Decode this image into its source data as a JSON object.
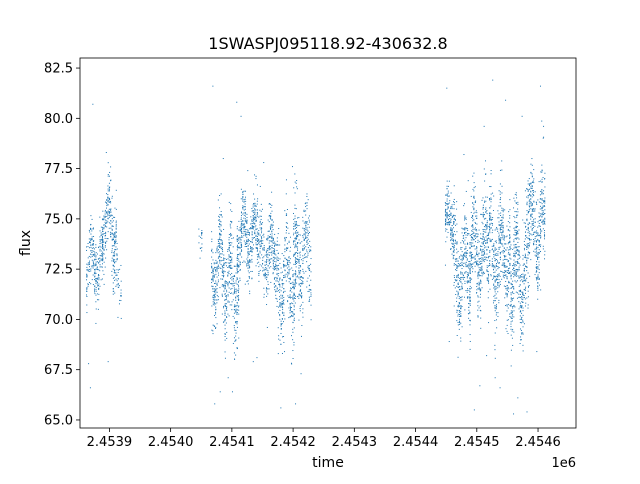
{
  "chart_data": {
    "type": "scatter",
    "title": "1SWASPJ095118.92-430632.8",
    "xlabel": "time",
    "ylabel": "flux",
    "x_offset_label": "1e6",
    "xlim": [
      2453852,
      2454662
    ],
    "ylim": [
      64.6,
      83.0
    ],
    "x_ticks": [
      2453900,
      2454000,
      2454100,
      2454200,
      2454300,
      2454400,
      2454500,
      2454600
    ],
    "x_tick_labels": [
      "2.4539",
      "2.4540",
      "2.4541",
      "2.4542",
      "2.4543",
      "2.4544",
      "2.4545",
      "2.4546"
    ],
    "y_ticks": [
      65.0,
      67.5,
      70.0,
      72.5,
      75.0,
      77.5,
      80.0,
      82.5
    ],
    "y_tick_labels": [
      "65.0",
      "67.5",
      "70.0",
      "72.5",
      "75.0",
      "77.5",
      "80.0",
      "82.5"
    ],
    "grid": false,
    "marker_color": "#1f77b4",
    "segments": [
      {
        "x_start": 2453862,
        "x_end": 2453890,
        "y_center": 72.9,
        "y_spread": 1.3,
        "n": 260,
        "seed": 11,
        "outliers": [
          [
            2453866,
            67.8
          ],
          [
            2453869,
            66.6
          ],
          [
            2453873,
            80.7
          ],
          [
            2453878,
            69.8
          ],
          [
            2453882,
            70.5
          ]
        ]
      },
      {
        "x_start": 2453888,
        "x_end": 2453912,
        "y_center": 74.7,
        "y_spread": 1.4,
        "n": 240,
        "seed": 23,
        "outliers": [
          [
            2453895,
            78.3
          ],
          [
            2453898,
            67.9
          ],
          [
            2453902,
            76.9
          ],
          [
            2453907,
            71.4
          ]
        ]
      },
      {
        "x_start": 2453905,
        "x_end": 2453920,
        "y_center": 72.0,
        "y_spread": 1.1,
        "n": 60,
        "seed": 31,
        "outliers": [
          [
            2453914,
            70.1
          ]
        ]
      },
      {
        "x_start": 2454045,
        "x_end": 2454052,
        "y_center": 74.3,
        "y_spread": 0.6,
        "n": 20,
        "seed": 41,
        "outliers": []
      },
      {
        "x_start": 2454066,
        "x_end": 2454090,
        "y_center": 72.5,
        "y_spread": 1.8,
        "n": 280,
        "seed": 53,
        "outliers": [
          [
            2454069,
            81.6
          ],
          [
            2454072,
            65.8
          ],
          [
            2454081,
            66.4
          ],
          [
            2454086,
            78.0
          ]
        ]
      },
      {
        "x_start": 2454088,
        "x_end": 2454112,
        "y_center": 71.8,
        "y_spread": 2.0,
        "n": 260,
        "seed": 61,
        "outliers": [
          [
            2454094,
            67.1
          ],
          [
            2454101,
            66.4
          ],
          [
            2454108,
            80.8
          ]
        ]
      },
      {
        "x_start": 2454108,
        "x_end": 2454145,
        "y_center": 74.1,
        "y_spread": 1.4,
        "n": 420,
        "seed": 73,
        "outliers": [
          [
            2454115,
            80.1
          ],
          [
            2454126,
            77.4
          ],
          [
            2454135,
            67.9
          ],
          [
            2454141,
            68.1
          ]
        ]
      },
      {
        "x_start": 2454145,
        "x_end": 2454175,
        "y_center": 73.3,
        "y_spread": 1.5,
        "n": 300,
        "seed": 83,
        "outliers": [
          [
            2454152,
            77.8
          ],
          [
            2454158,
            69.6
          ]
        ]
      },
      {
        "x_start": 2454175,
        "x_end": 2454205,
        "y_center": 72.0,
        "y_spread": 2.1,
        "n": 330,
        "seed": 97,
        "outliers": [
          [
            2454180,
            65.6
          ],
          [
            2454186,
            68.4
          ],
          [
            2454199,
            77.6
          ],
          [
            2454204,
            65.8
          ]
        ]
      },
      {
        "x_start": 2454200,
        "x_end": 2454230,
        "y_center": 73.3,
        "y_spread": 1.9,
        "n": 300,
        "seed": 101,
        "outliers": [
          [
            2454207,
            76.5
          ],
          [
            2454213,
            67.3
          ],
          [
            2454226,
            70.9
          ]
        ]
      },
      {
        "x_start": 2454448,
        "x_end": 2454463,
        "y_center": 74.8,
        "y_spread": 1.1,
        "n": 160,
        "seed": 113,
        "outliers": [
          [
            2454451,
            81.5
          ],
          [
            2454455,
            68.9
          ]
        ]
      },
      {
        "x_start": 2454462,
        "x_end": 2454490,
        "y_center": 72.4,
        "y_spread": 2.1,
        "n": 340,
        "seed": 127,
        "outliers": [
          [
            2454468,
            69.2
          ],
          [
            2454479,
            78.2
          ],
          [
            2454486,
            76.9
          ]
        ]
      },
      {
        "x_start": 2454488,
        "x_end": 2454520,
        "y_center": 73.4,
        "y_spread": 1.9,
        "n": 420,
        "seed": 131,
        "outliers": [
          [
            2454496,
            65.5
          ],
          [
            2454505,
            66.7
          ],
          [
            2454512,
            79.6
          ],
          [
            2454516,
            68.2
          ]
        ]
      },
      {
        "x_start": 2454520,
        "x_end": 2454555,
        "y_center": 73.2,
        "y_spread": 2.1,
        "n": 460,
        "seed": 139,
        "outliers": [
          [
            2454526,
            81.9
          ],
          [
            2454530,
            67.1
          ],
          [
            2454538,
            66.6
          ],
          [
            2454547,
            80.9
          ],
          [
            2454551,
            69.3
          ]
        ]
      },
      {
        "x_start": 2454555,
        "x_end": 2454585,
        "y_center": 72.3,
        "y_spread": 2.3,
        "n": 420,
        "seed": 149,
        "outliers": [
          [
            2454560,
            65.3
          ],
          [
            2454567,
            66.1
          ],
          [
            2454574,
            80.1
          ],
          [
            2454582,
            65.4
          ]
        ]
      },
      {
        "x_start": 2454585,
        "x_end": 2454612,
        "y_center": 74.5,
        "y_spread": 1.9,
        "n": 340,
        "seed": 157,
        "outliers": [
          [
            2454590,
            78.0
          ],
          [
            2454598,
            68.4
          ],
          [
            2454604,
            81.6
          ],
          [
            2454609,
            79.6
          ]
        ]
      }
    ]
  }
}
